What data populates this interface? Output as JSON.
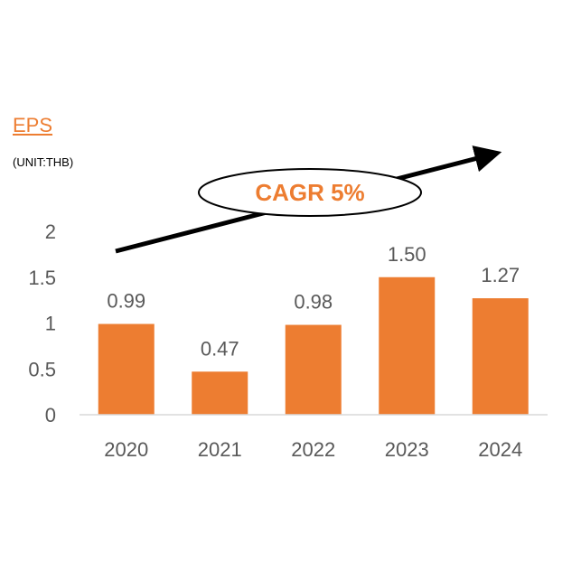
{
  "chart_data": {
    "type": "bar",
    "title": "EPS",
    "subtitle": "(UNIT:THB)",
    "categories": [
      "2020",
      "2021",
      "2022",
      "2023",
      "2024"
    ],
    "values": [
      0.99,
      0.47,
      0.98,
      1.5,
      1.27
    ],
    "value_labels": [
      "0.99",
      "0.47",
      "0.98",
      "1.50",
      "1.27"
    ],
    "yticks": [
      "0",
      "0.5",
      "1",
      "1.5",
      "2"
    ],
    "ylim": [
      0,
      2
    ],
    "grid": false,
    "annotation": "CAGR 5%",
    "colors": {
      "bar": "#ED7D31",
      "title": "#ED7D31",
      "annotation": "#ED7D31",
      "axis_text": "#595959",
      "arrow": "#000000"
    }
  }
}
